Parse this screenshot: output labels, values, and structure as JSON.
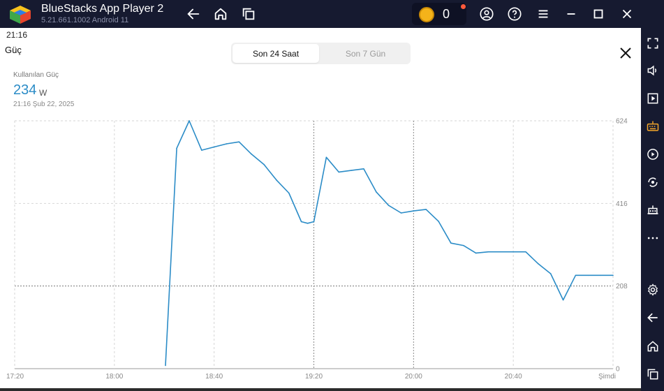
{
  "titlebar": {
    "app_title": "BlueStacks App Player 2",
    "version": "5.21.661.1002  Android 11",
    "coins": "0",
    "icons": [
      "back-icon",
      "home-icon",
      "multi-instance-icon",
      "account-icon",
      "help-icon",
      "menu-icon",
      "minimize-icon",
      "maximize-icon",
      "close-window-icon"
    ]
  },
  "sidebar": {
    "icons": [
      "fullscreen-icon",
      "volume-icon",
      "media-icon",
      "keyboard-icon",
      "macro-icon",
      "rotate-icon",
      "performance-icon",
      "more-icon",
      "settings-icon",
      "android-back-icon",
      "android-home-icon",
      "recent-apps-icon"
    ]
  },
  "status": {
    "time": "21:16"
  },
  "panel": {
    "title": "Güç",
    "tabs": [
      {
        "label": "Son 24 Saat",
        "selected": true
      },
      {
        "label": "Son 7 Gün",
        "selected": false
      }
    ]
  },
  "metric": {
    "label": "Kullanılan Güç",
    "value": "234",
    "unit": "W",
    "date": "21:16  Şub 22, 2025"
  },
  "colors": {
    "accent": "#2b8cc7",
    "titlebar": "#161a30",
    "coin": "#f4b31a"
  },
  "chart_data": {
    "type": "line",
    "title": "",
    "xlabel": "",
    "ylabel": "",
    "ylim": [
      0,
      624
    ],
    "y_ticks": [
      "624",
      "416",
      "208",
      "0"
    ],
    "x_ticks": [
      "17:20",
      "18:00",
      "18:40",
      "19:20",
      "20:00",
      "20:40",
      "Şimdi"
    ],
    "x_tick_minutes": [
      0,
      40,
      80,
      120,
      160,
      200,
      240
    ],
    "series": [
      {
        "x_minutes": [
          60.5,
          65,
          70,
          75,
          80,
          85,
          90,
          95,
          100,
          105,
          110,
          115,
          117.5,
          120,
          125,
          130,
          135,
          140,
          145,
          150,
          155,
          160,
          165,
          170,
          175,
          180,
          185,
          190,
          195,
          200,
          205,
          210,
          215,
          220,
          225,
          230,
          235,
          240
        ],
        "values": [
          8,
          555,
          624,
          550,
          558,
          566,
          571,
          540,
          514,
          475,
          442,
          370,
          366,
          370,
          532,
          495,
          499,
          503,
          445,
          411,
          392,
          397,
          401,
          371,
          316,
          310,
          291,
          294,
          294,
          294,
          294,
          264,
          239,
          173,
          235,
          235,
          235,
          235
        ]
      }
    ]
  }
}
